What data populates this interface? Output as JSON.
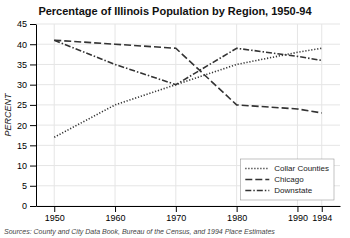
{
  "chart_data": {
    "type": "line",
    "title": "Percentage of Illinois Population by Region, 1950-94",
    "y_label": "PERCENT",
    "annotations": [
      "Sources: County and City Data Book, Bureau of the Census, and 1994 Place Estimates"
    ],
    "x": [
      1950,
      1960,
      1970,
      1980,
      1990,
      1994
    ],
    "series": [
      {
        "name": "Collar Counties",
        "color": "#333333",
        "line_style": "dotted",
        "values": [
          17,
          25,
          30,
          35,
          38,
          39
        ]
      },
      {
        "name": "Chicago",
        "color": "#333333",
        "line_style": "dashed",
        "values": [
          41,
          40,
          39,
          25,
          24,
          23
        ]
      },
      {
        "name": "Downstate",
        "color": "#333333",
        "line_style": "dashdot",
        "values": [
          41,
          35,
          30,
          39,
          37,
          36
        ]
      }
    ],
    "xlim": [
      1947,
      1997
    ],
    "xticks": [
      1950,
      1960,
      1970,
      1980,
      1990,
      1994
    ],
    "ylim": [
      0,
      45
    ],
    "yticks": [
      0,
      5,
      10,
      15,
      20,
      25,
      30,
      35,
      40,
      45
    ],
    "grid": true,
    "legend": "lower right"
  }
}
